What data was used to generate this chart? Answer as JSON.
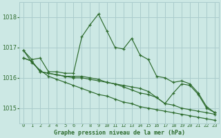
{
  "title": "Graphe pression niveau de la mer (hPa)",
  "background_color": "#cce8e4",
  "grid_color": "#aacccc",
  "line_color": "#2d6b2d",
  "x_labels": [
    "0",
    "1",
    "2",
    "3",
    "4",
    "5",
    "6",
    "7",
    "8",
    "9",
    "10",
    "11",
    "12",
    "13",
    "14",
    "15",
    "16",
    "17",
    "18",
    "19",
    "20",
    "21",
    "22",
    "23"
  ],
  "ylim": [
    1014.5,
    1018.5
  ],
  "yticks": [
    1015,
    1016,
    1017,
    1018
  ],
  "series": {
    "main": [
      1016.9,
      1016.6,
      1016.65,
      1016.2,
      1016.2,
      1016.15,
      1016.15,
      1017.35,
      1017.75,
      1018.1,
      1017.55,
      1017.0,
      1016.95,
      1017.3,
      1016.75,
      1016.6,
      1016.05,
      1016.0,
      1015.85,
      1015.9,
      1015.8,
      1015.5,
      1015.05,
      1014.85
    ],
    "low": [
      1016.65,
      1016.55,
      1016.2,
      1016.15,
      1016.1,
      1016.05,
      1016.05,
      1016.05,
      1016.0,
      1015.95,
      1015.85,
      1015.8,
      1015.7,
      1015.6,
      1015.5,
      1015.45,
      1015.35,
      1015.15,
      1015.1,
      1015.0,
      1014.95,
      1014.9,
      1014.85,
      1014.8
    ],
    "trend": [
      1016.9,
      1016.5,
      1016.25,
      1016.05,
      1015.95,
      1015.85,
      1015.75,
      1015.65,
      1015.55,
      1015.45,
      1015.4,
      1015.3,
      1015.2,
      1015.15,
      1015.05,
      1015.0,
      1014.95,
      1014.9,
      1014.85,
      1014.8,
      1014.75,
      1014.7,
      1014.65,
      1014.6
    ],
    "alt": [
      1016.65,
      1016.55,
      1016.2,
      1016.15,
      1016.1,
      1016.05,
      1016.0,
      1016.0,
      1015.95,
      1015.9,
      1015.85,
      1015.8,
      1015.75,
      1015.7,
      1015.65,
      1015.55,
      1015.35,
      1015.15,
      1015.5,
      1015.8,
      1015.75,
      1015.45,
      1015.0,
      1014.85
    ]
  }
}
